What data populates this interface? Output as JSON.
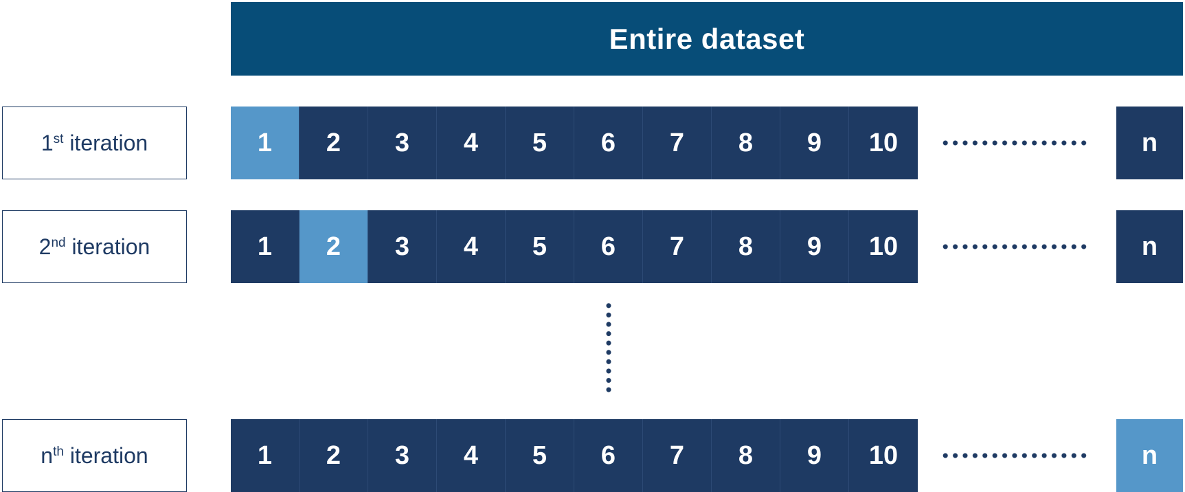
{
  "header": {
    "title": "Entire dataset",
    "color": "#074d78"
  },
  "colors": {
    "fold_default": "#1e3a63",
    "fold_highlight": "#5597c9",
    "label_border": "#1e3a63",
    "dots": "#1e3a63"
  },
  "cells": [
    "1",
    "2",
    "3",
    "4",
    "5",
    "6",
    "7",
    "8",
    "9",
    "10"
  ],
  "last_cell": "n",
  "iterations": [
    {
      "num": "1",
      "suffix": "st",
      "text": " iteration",
      "highlight": "1"
    },
    {
      "num": "2",
      "suffix": "nd",
      "text": " iteration",
      "highlight": "2"
    },
    {
      "num": "n",
      "suffix": "th",
      "text": " iteration",
      "highlight": "n"
    }
  ]
}
